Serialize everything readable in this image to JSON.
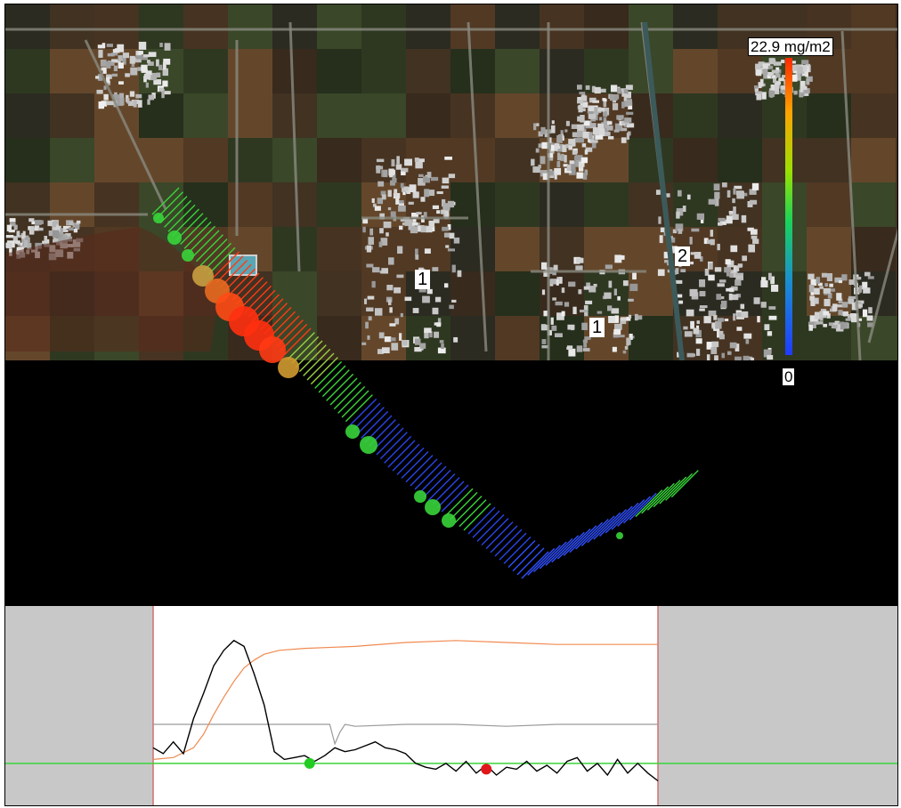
{
  "map": {
    "site_labels": [
      {
        "text": "1"
      },
      {
        "text": "1"
      },
      {
        "text": "2"
      }
    ],
    "legend": {
      "max_label": "22.9 mg/m2",
      "min_label": "0",
      "max_value": 22.9,
      "min_value": 0,
      "colors": [
        "#ff2a00",
        "#ffa200",
        "#9be000",
        "#19d35a",
        "#1a8fd0",
        "#1f3cff"
      ]
    }
  },
  "chart_data": {
    "type": "line",
    "title": "",
    "xlabel": "",
    "ylabel": "",
    "grid": false,
    "xlim": [
      0,
      100
    ],
    "ylim": [
      0,
      100
    ],
    "series": [
      {
        "color": "#000000",
        "x": [
          0,
          2,
          4,
          6,
          8,
          10,
          12,
          14,
          16,
          18,
          20,
          22,
          24,
          26,
          28,
          30,
          32,
          34,
          36,
          38,
          40,
          42,
          44,
          46,
          48,
          50,
          52,
          54,
          56,
          58,
          60,
          62,
          64,
          66,
          68,
          70,
          72,
          74,
          76,
          78,
          80,
          82,
          84,
          86,
          88,
          90,
          92,
          94,
          96,
          98,
          100
        ],
        "values": [
          30,
          27,
          33,
          27,
          45,
          58,
          72,
          80,
          85,
          82,
          68,
          52,
          28,
          24,
          25,
          26,
          23,
          26,
          30,
          28,
          29,
          31,
          33,
          30,
          29,
          27,
          22,
          20,
          19,
          22,
          18,
          23,
          17,
          21,
          16,
          20,
          19,
          23,
          18,
          21,
          17,
          23,
          25,
          18,
          22,
          16,
          24,
          17,
          22,
          17,
          13
        ]
      },
      {
        "color": "#f08a50",
        "x": [
          0,
          4,
          8,
          10,
          12,
          14,
          16,
          18,
          20,
          22,
          25,
          30,
          40,
          50,
          60,
          70,
          80,
          90,
          100
        ],
        "values": [
          24,
          25,
          30,
          37,
          47,
          56,
          64,
          71,
          75,
          78,
          80,
          81,
          82,
          84,
          85,
          84,
          83,
          83,
          83
        ]
      },
      {
        "color": "#9a9a9a",
        "x": [
          0,
          10,
          20,
          30,
          35,
          36,
          37,
          38,
          40,
          50,
          60,
          70,
          80,
          90,
          100
        ],
        "values": [
          42,
          42,
          42,
          42,
          42,
          32,
          38,
          42,
          41,
          42,
          42,
          41,
          42,
          42,
          42
        ]
      }
    ],
    "baseline": {
      "value": 22,
      "color": "#39d43a"
    },
    "markers": [
      {
        "x": 31,
        "y": 22,
        "color": "#22cc22"
      },
      {
        "x": 66,
        "y": 19,
        "color": "#e0161a"
      }
    ]
  }
}
